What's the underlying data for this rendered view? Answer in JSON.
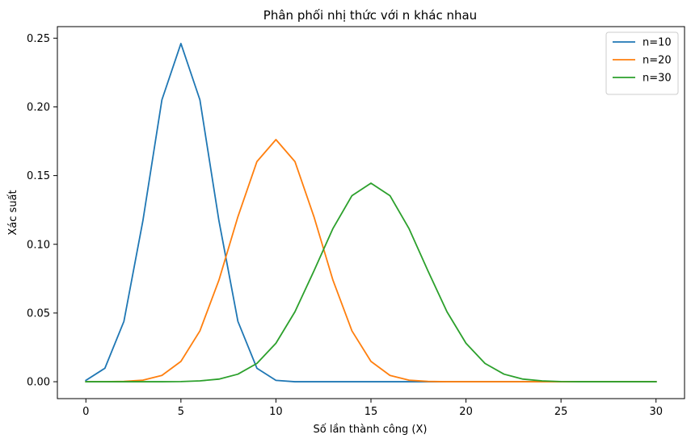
{
  "chart_data": {
    "type": "line",
    "title": "Phân phối nhị thức với n khác nhau",
    "xlabel": "Số lần thành công (X)",
    "ylabel": "Xác suất",
    "xlim": [
      -1.5,
      31.5
    ],
    "ylim": [
      -0.0123,
      0.2584
    ],
    "xticks": [
      0,
      5,
      10,
      15,
      20,
      25,
      30
    ],
    "yticks": [
      0.0,
      0.05,
      0.1,
      0.15,
      0.2,
      0.25
    ],
    "ytick_labels": [
      "0.00",
      "0.05",
      "0.10",
      "0.15",
      "0.20",
      "0.25"
    ],
    "legend_position": "top-right",
    "grid": false,
    "series": [
      {
        "name": "n=10",
        "color": "#1f77b4",
        "x": [
          0,
          1,
          2,
          3,
          4,
          5,
          6,
          7,
          8,
          9,
          10,
          11,
          12,
          13,
          14,
          15,
          16,
          17,
          18,
          19,
          20,
          21,
          22,
          23,
          24,
          25,
          26,
          27,
          28,
          29,
          30
        ],
        "y": [
          0.001,
          0.0098,
          0.0439,
          0.1172,
          0.2051,
          0.2461,
          0.2051,
          0.1172,
          0.0439,
          0.0098,
          0.001,
          0,
          0,
          0,
          0,
          0,
          0,
          0,
          0,
          0,
          0,
          0,
          0,
          0,
          0,
          0,
          0,
          0,
          0,
          0,
          0
        ]
      },
      {
        "name": "n=20",
        "color": "#ff7f0e",
        "x": [
          0,
          1,
          2,
          3,
          4,
          5,
          6,
          7,
          8,
          9,
          10,
          11,
          12,
          13,
          14,
          15,
          16,
          17,
          18,
          19,
          20,
          21,
          22,
          23,
          24,
          25,
          26,
          27,
          28,
          29,
          30
        ],
        "y": [
          0,
          0,
          0.0002,
          0.0011,
          0.0046,
          0.0148,
          0.037,
          0.0739,
          0.1201,
          0.1602,
          0.1762,
          0.1602,
          0.1201,
          0.0739,
          0.037,
          0.0148,
          0.0046,
          0.0011,
          0.0002,
          0,
          0,
          0,
          0,
          0,
          0,
          0,
          0,
          0,
          0,
          0,
          0
        ]
      },
      {
        "name": "n=30",
        "color": "#2ca02c",
        "x": [
          0,
          1,
          2,
          3,
          4,
          5,
          6,
          7,
          8,
          9,
          10,
          11,
          12,
          13,
          14,
          15,
          16,
          17,
          18,
          19,
          20,
          21,
          22,
          23,
          24,
          25,
          26,
          27,
          28,
          29,
          30
        ],
        "y": [
          0,
          0,
          0,
          0,
          0,
          0.0001,
          0.0006,
          0.0019,
          0.0055,
          0.0133,
          0.028,
          0.0509,
          0.0806,
          0.1115,
          0.1354,
          0.1445,
          0.1354,
          0.1115,
          0.0806,
          0.0509,
          0.028,
          0.0133,
          0.0055,
          0.0019,
          0.0006,
          0.0001,
          0,
          0,
          0,
          0,
          0
        ]
      }
    ]
  }
}
